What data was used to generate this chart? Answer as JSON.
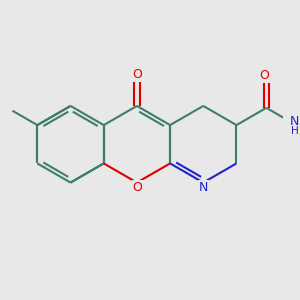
{
  "background_color": "#e8e8e8",
  "bond_color": "#3d7d6e",
  "oxygen_color": "#dd0000",
  "nitrogen_color": "#2222cc",
  "line_width": 1.5,
  "figsize": [
    3.0,
    3.0
  ],
  "dpi": 100,
  "xlim": [
    -3.5,
    3.8
  ],
  "ylim": [
    -2.2,
    2.2
  ]
}
